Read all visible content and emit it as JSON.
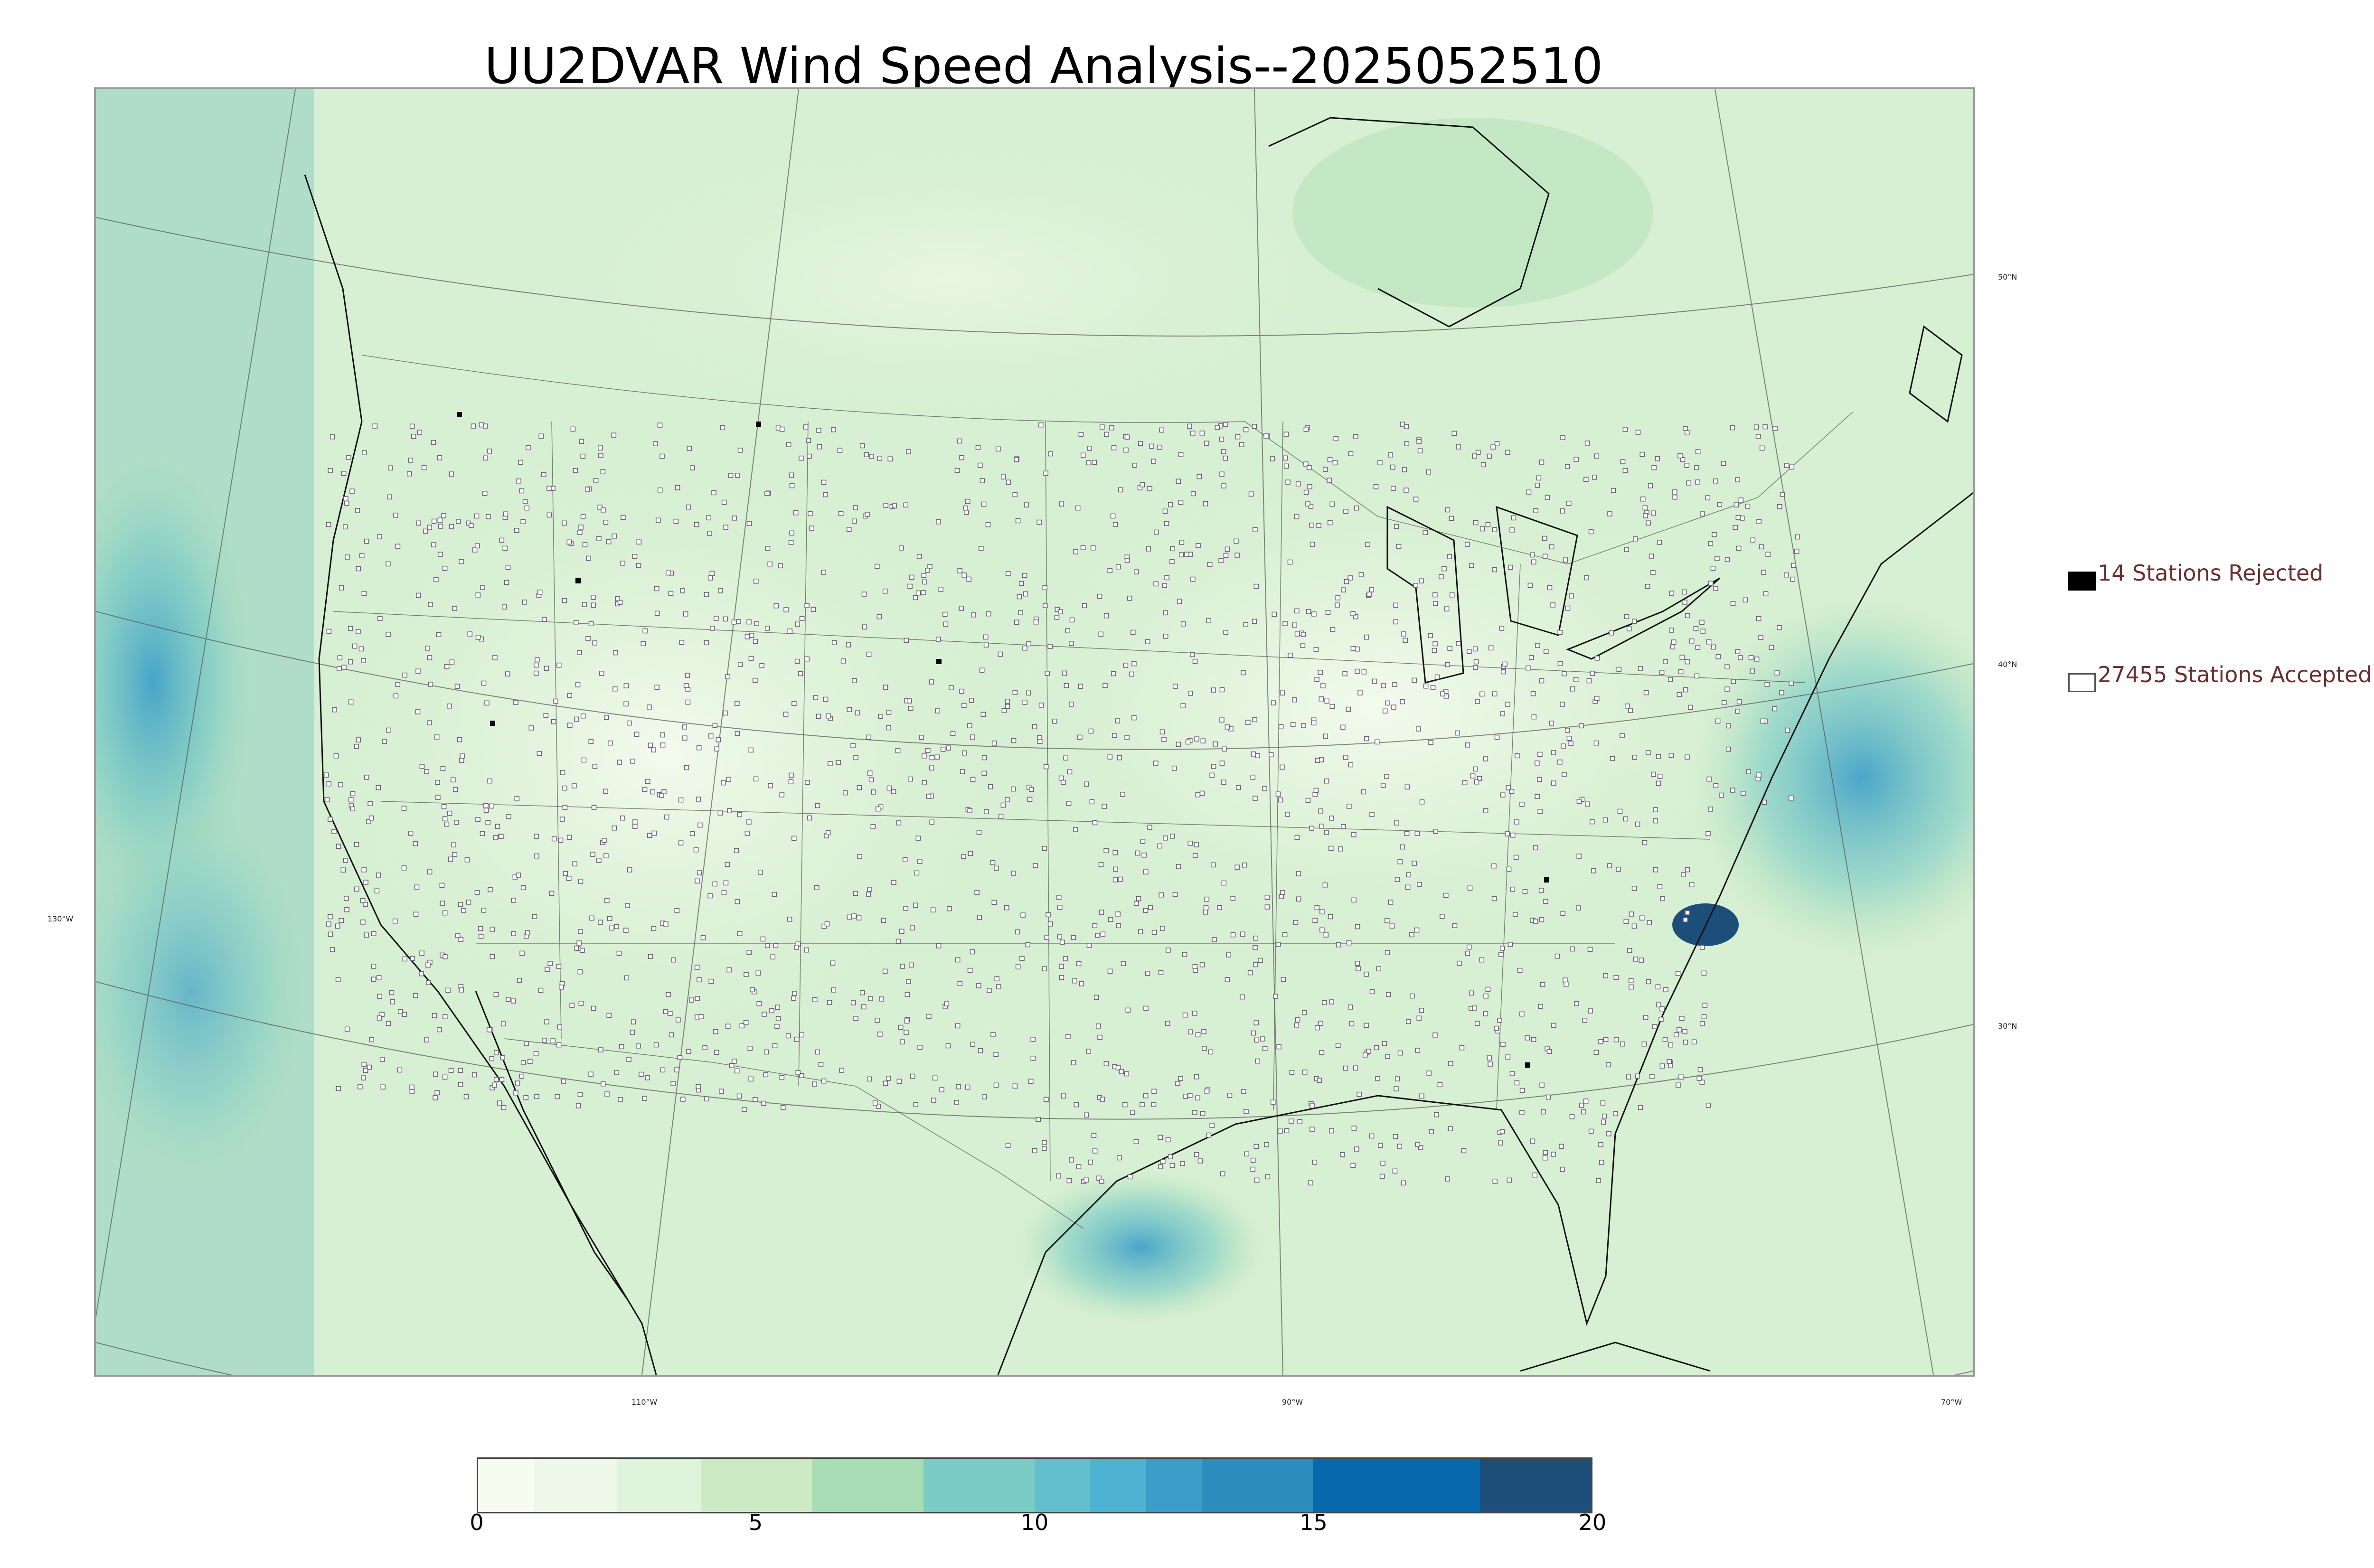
{
  "title": "UU2DVAR Wind Speed Analysis--2025052510",
  "map": {
    "lat_labels": [
      "50°N",
      "40°N",
      "30°N"
    ],
    "lon_labels": [
      "130°W",
      "110°W",
      "90°W",
      "70°W"
    ]
  },
  "legend": {
    "rejected_label": "14 Stations Rejected",
    "accepted_label": "27455 Stations Accepted",
    "rejected_color": "#000000",
    "accepted_color": "#ffffff"
  },
  "colorbar": {
    "ticks": [
      "0",
      "5",
      "10",
      "15",
      "20"
    ],
    "range": [
      0,
      20
    ],
    "colors": [
      "#f7fcf0",
      "#eef8e8",
      "#e0f3db",
      "#ccebc5",
      "#a8ddb5",
      "#7bccc4",
      "#63bfce",
      "#4eb3d3",
      "#3a9ec8",
      "#2b8cbe",
      "#0868ac",
      "#1d4e7a"
    ],
    "bounds": [
      0,
      1,
      2.5,
      4,
      6,
      8,
      10,
      11,
      12,
      13,
      15,
      18,
      20
    ]
  }
}
